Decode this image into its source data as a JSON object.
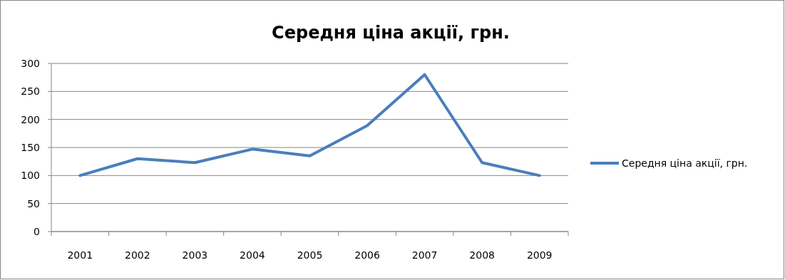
{
  "chart_data": {
    "type": "line",
    "title": "Середня ціна акції, грн.",
    "categories": [
      "2001",
      "2002",
      "2003",
      "2004",
      "2005",
      "2006",
      "2007",
      "2008",
      "2009"
    ],
    "series": [
      {
        "name": "Середня ціна акції, грн.",
        "color": "#4a7ebb",
        "values": [
          100,
          130,
          123,
          147,
          135,
          189,
          280,
          123,
          100
        ]
      }
    ],
    "ylim": [
      0,
      300
    ],
    "yticks": [
      0,
      50,
      100,
      150,
      200,
      250,
      300
    ],
    "grid": "y",
    "legend": "right",
    "marker": "none",
    "line_style": "solid"
  }
}
